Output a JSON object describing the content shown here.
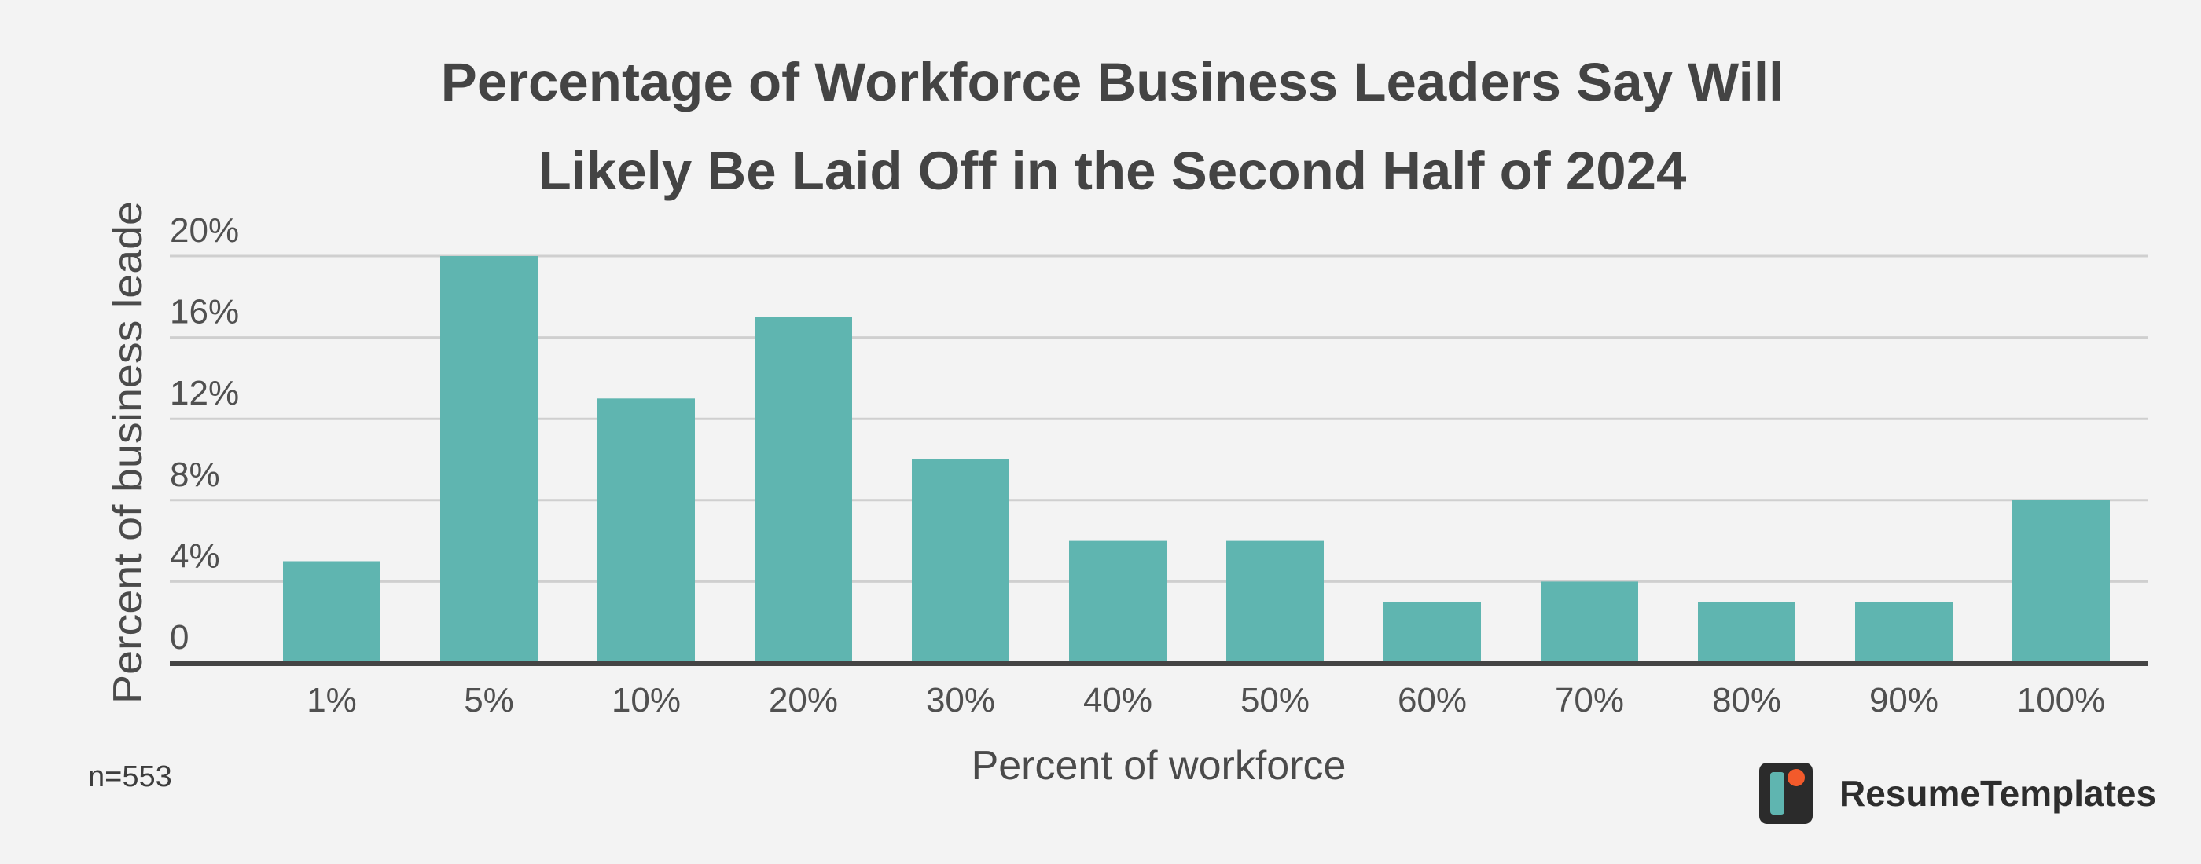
{
  "chart_data": {
    "type": "bar",
    "title_lines": [
      "Percentage of Workforce Business Leaders Say Will",
      "Likely Be Laid Off in the Second Half of 2024"
    ],
    "xlabel": "Percent of workforce",
    "ylabel": "Percent of business leade",
    "categories": [
      "1%",
      "5%",
      "10%",
      "20%",
      "30%",
      "40%",
      "50%",
      "60%",
      "70%",
      "80%",
      "90%",
      "100%"
    ],
    "values": [
      5,
      20,
      13,
      17,
      10,
      6,
      6,
      3,
      4,
      3,
      3,
      8
    ],
    "yticks": [
      {
        "value": 0,
        "label": "0"
      },
      {
        "value": 4,
        "label": "4%"
      },
      {
        "value": 8,
        "label": "8%"
      },
      {
        "value": 12,
        "label": "12%"
      },
      {
        "value": 16,
        "label": "16%"
      },
      {
        "value": 20,
        "label": "20%"
      }
    ],
    "ylim": [
      0,
      20
    ],
    "grid": true,
    "bar_color": "#5fb5b0",
    "grid_color": "#cfcfcf",
    "axis_color": "#444444"
  },
  "footnote": "n=553",
  "brand": {
    "name": "ResumeTemplates",
    "colors": {
      "tile": "#2b2b2b",
      "bar": "#5fb5b0",
      "dot": "#f25a2b"
    }
  }
}
